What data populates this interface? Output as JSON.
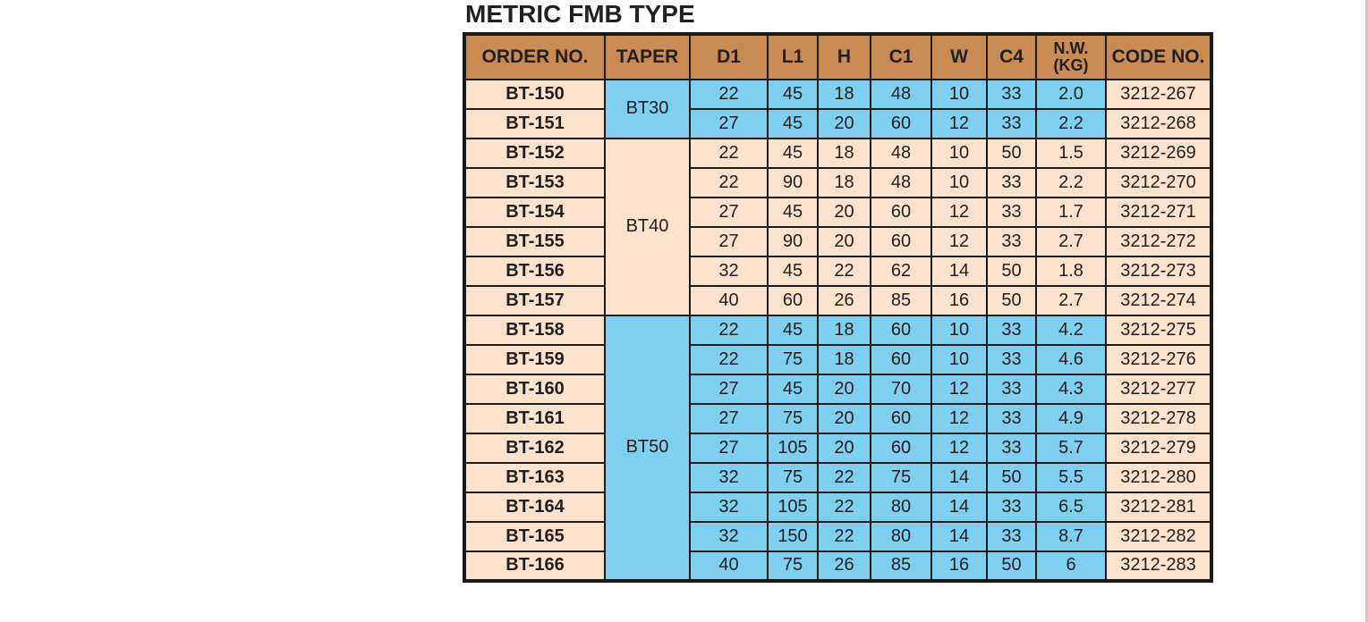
{
  "page": {
    "title": "METRIC FMB TYPE"
  },
  "colors": {
    "header_bg": "#C98A54",
    "peach_bg": "#FBE2CC",
    "blue_bg": "#7FCFF0",
    "border": "#1A1A1A",
    "text": "#231F20",
    "page_bg": "#FFFFFF",
    "page_edge": "#C9C9C9"
  },
  "table": {
    "columns": [
      {
        "label": "ORDER NO."
      },
      {
        "label": "TAPER"
      },
      {
        "label": "D1"
      },
      {
        "label": "L1"
      },
      {
        "label": "H"
      },
      {
        "label": "C1"
      },
      {
        "label": "W"
      },
      {
        "label": "C4"
      },
      {
        "label": "N.W.",
        "label2": "(KG)"
      },
      {
        "label": "CODE NO."
      }
    ],
    "sections": [
      {
        "taper": "BT30",
        "color": "blue",
        "rows": [
          {
            "order_no": "BT-150",
            "d1": "22",
            "l1": "45",
            "h": "18",
            "c1": "48",
            "w": "10",
            "c4": "33",
            "nw_kg": "2.0",
            "code_no": "3212-267"
          },
          {
            "order_no": "BT-151",
            "d1": "27",
            "l1": "45",
            "h": "20",
            "c1": "60",
            "w": "12",
            "c4": "33",
            "nw_kg": "2.2",
            "code_no": "3212-268"
          }
        ]
      },
      {
        "taper": "BT40",
        "color": "peach",
        "rows": [
          {
            "order_no": "BT-152",
            "d1": "22",
            "l1": "45",
            "h": "18",
            "c1": "48",
            "w": "10",
            "c4": "50",
            "nw_kg": "1.5",
            "code_no": "3212-269"
          },
          {
            "order_no": "BT-153",
            "d1": "22",
            "l1": "90",
            "h": "18",
            "c1": "48",
            "w": "10",
            "c4": "33",
            "nw_kg": "2.2",
            "code_no": "3212-270"
          },
          {
            "order_no": "BT-154",
            "d1": "27",
            "l1": "45",
            "h": "20",
            "c1": "60",
            "w": "12",
            "c4": "33",
            "nw_kg": "1.7",
            "code_no": "3212-271"
          },
          {
            "order_no": "BT-155",
            "d1": "27",
            "l1": "90",
            "h": "20",
            "c1": "60",
            "w": "12",
            "c4": "33",
            "nw_kg": "2.7",
            "code_no": "3212-272"
          },
          {
            "order_no": "BT-156",
            "d1": "32",
            "l1": "45",
            "h": "22",
            "c1": "62",
            "w": "14",
            "c4": "50",
            "nw_kg": "1.8",
            "code_no": "3212-273"
          },
          {
            "order_no": "BT-157",
            "d1": "40",
            "l1": "60",
            "h": "26",
            "c1": "85",
            "w": "16",
            "c4": "50",
            "nw_kg": "2.7",
            "code_no": "3212-274"
          }
        ]
      },
      {
        "taper": "BT50",
        "color": "blue",
        "rows": [
          {
            "order_no": "BT-158",
            "d1": "22",
            "l1": "45",
            "h": "18",
            "c1": "60",
            "w": "10",
            "c4": "33",
            "nw_kg": "4.2",
            "code_no": "3212-275"
          },
          {
            "order_no": "BT-159",
            "d1": "22",
            "l1": "75",
            "h": "18",
            "c1": "60",
            "w": "10",
            "c4": "33",
            "nw_kg": "4.6",
            "code_no": "3212-276"
          },
          {
            "order_no": "BT-160",
            "d1": "27",
            "l1": "45",
            "h": "20",
            "c1": "70",
            "w": "12",
            "c4": "33",
            "nw_kg": "4.3",
            "code_no": "3212-277"
          },
          {
            "order_no": "BT-161",
            "d1": "27",
            "l1": "75",
            "h": "20",
            "c1": "60",
            "w": "12",
            "c4": "33",
            "nw_kg": "4.9",
            "code_no": "3212-278"
          },
          {
            "order_no": "BT-162",
            "d1": "27",
            "l1": "105",
            "h": "20",
            "c1": "60",
            "w": "12",
            "c4": "33",
            "nw_kg": "5.7",
            "code_no": "3212-279"
          },
          {
            "order_no": "BT-163",
            "d1": "32",
            "l1": "75",
            "h": "22",
            "c1": "75",
            "w": "14",
            "c4": "50",
            "nw_kg": "5.5",
            "code_no": "3212-280"
          },
          {
            "order_no": "BT-164",
            "d1": "32",
            "l1": "105",
            "h": "22",
            "c1": "80",
            "w": "14",
            "c4": "33",
            "nw_kg": "6.5",
            "code_no": "3212-281"
          },
          {
            "order_no": "BT-165",
            "d1": "32",
            "l1": "150",
            "h": "22",
            "c1": "80",
            "w": "14",
            "c4": "33",
            "nw_kg": "8.7",
            "code_no": "3212-282"
          },
          {
            "order_no": "BT-166",
            "d1": "40",
            "l1": "75",
            "h": "26",
            "c1": "85",
            "w": "16",
            "c4": "50",
            "nw_kg": "6",
            "code_no": "3212-283"
          }
        ]
      }
    ]
  }
}
